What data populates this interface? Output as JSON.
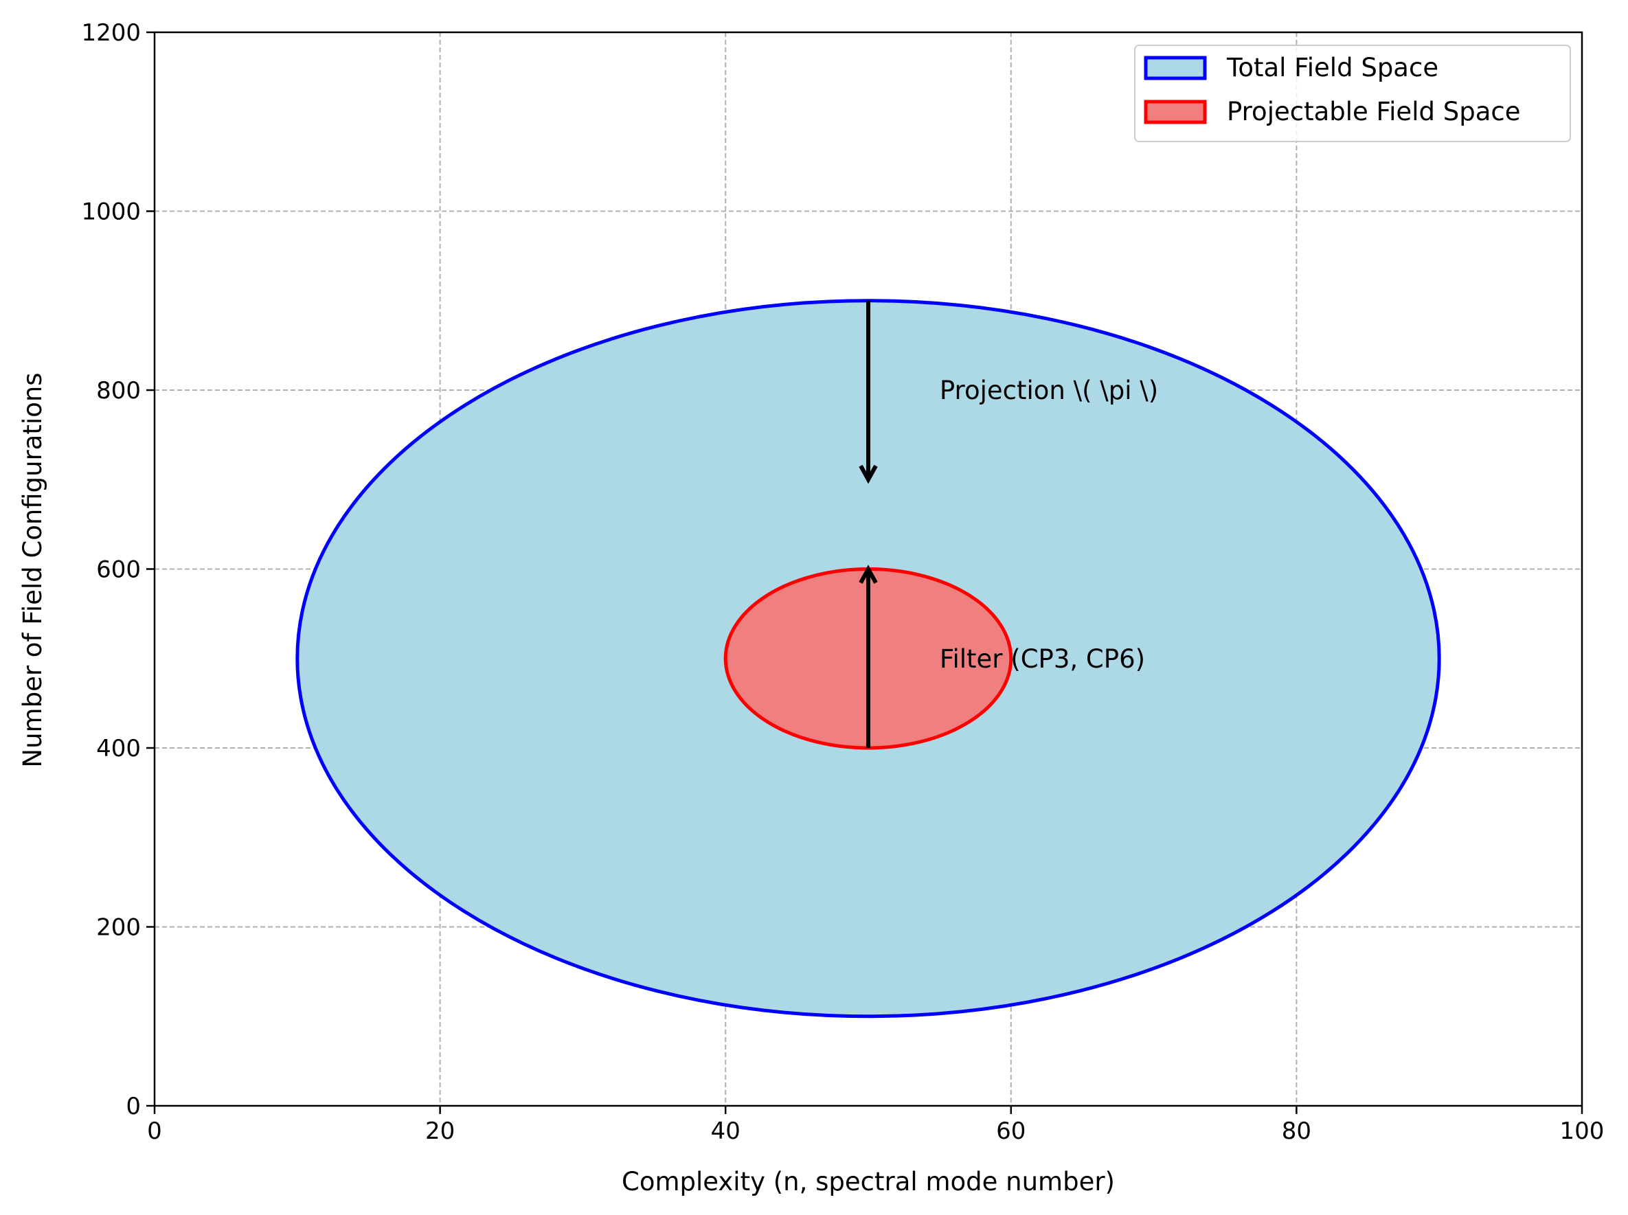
{
  "chart_data": {
    "type": "area",
    "xlabel": "Complexity (n, spectral mode number)",
    "ylabel": "Number of Field Configurations",
    "xlim": [
      0,
      100
    ],
    "ylim": [
      0,
      1200
    ],
    "xticks": [
      0,
      20,
      40,
      60,
      80,
      100
    ],
    "yticks": [
      0,
      200,
      400,
      600,
      800,
      1000,
      1200
    ],
    "xtick_labels": [
      "0",
      "20",
      "40",
      "60",
      "80",
      "100"
    ],
    "ytick_labels": [
      "0",
      "200",
      "400",
      "600",
      "800",
      "1000",
      "1200"
    ],
    "grid": true,
    "legend_position": "top-right",
    "series": [
      {
        "name": "Total Field Space",
        "shape": "ellipse",
        "center": [
          50,
          500
        ],
        "x_radius": 40,
        "y_radius": 400,
        "fill": "#add8e6",
        "edge": "#0000ff"
      },
      {
        "name": "Projectable Field Space",
        "shape": "ellipse",
        "center": [
          50,
          500
        ],
        "x_radius": 10,
        "y_radius": 100,
        "fill": "#f08080",
        "edge": "#ff0000"
      }
    ],
    "arrows": [
      {
        "from": [
          50,
          900
        ],
        "to": [
          50,
          700
        ]
      },
      {
        "from": [
          50,
          400
        ],
        "to": [
          50,
          600
        ]
      }
    ],
    "annotations": [
      {
        "text": "Projection \\( \\pi \\)",
        "x": 55,
        "y": 800
      },
      {
        "text": "Filter (CP3, CP6)",
        "x": 55,
        "y": 500
      }
    ]
  }
}
